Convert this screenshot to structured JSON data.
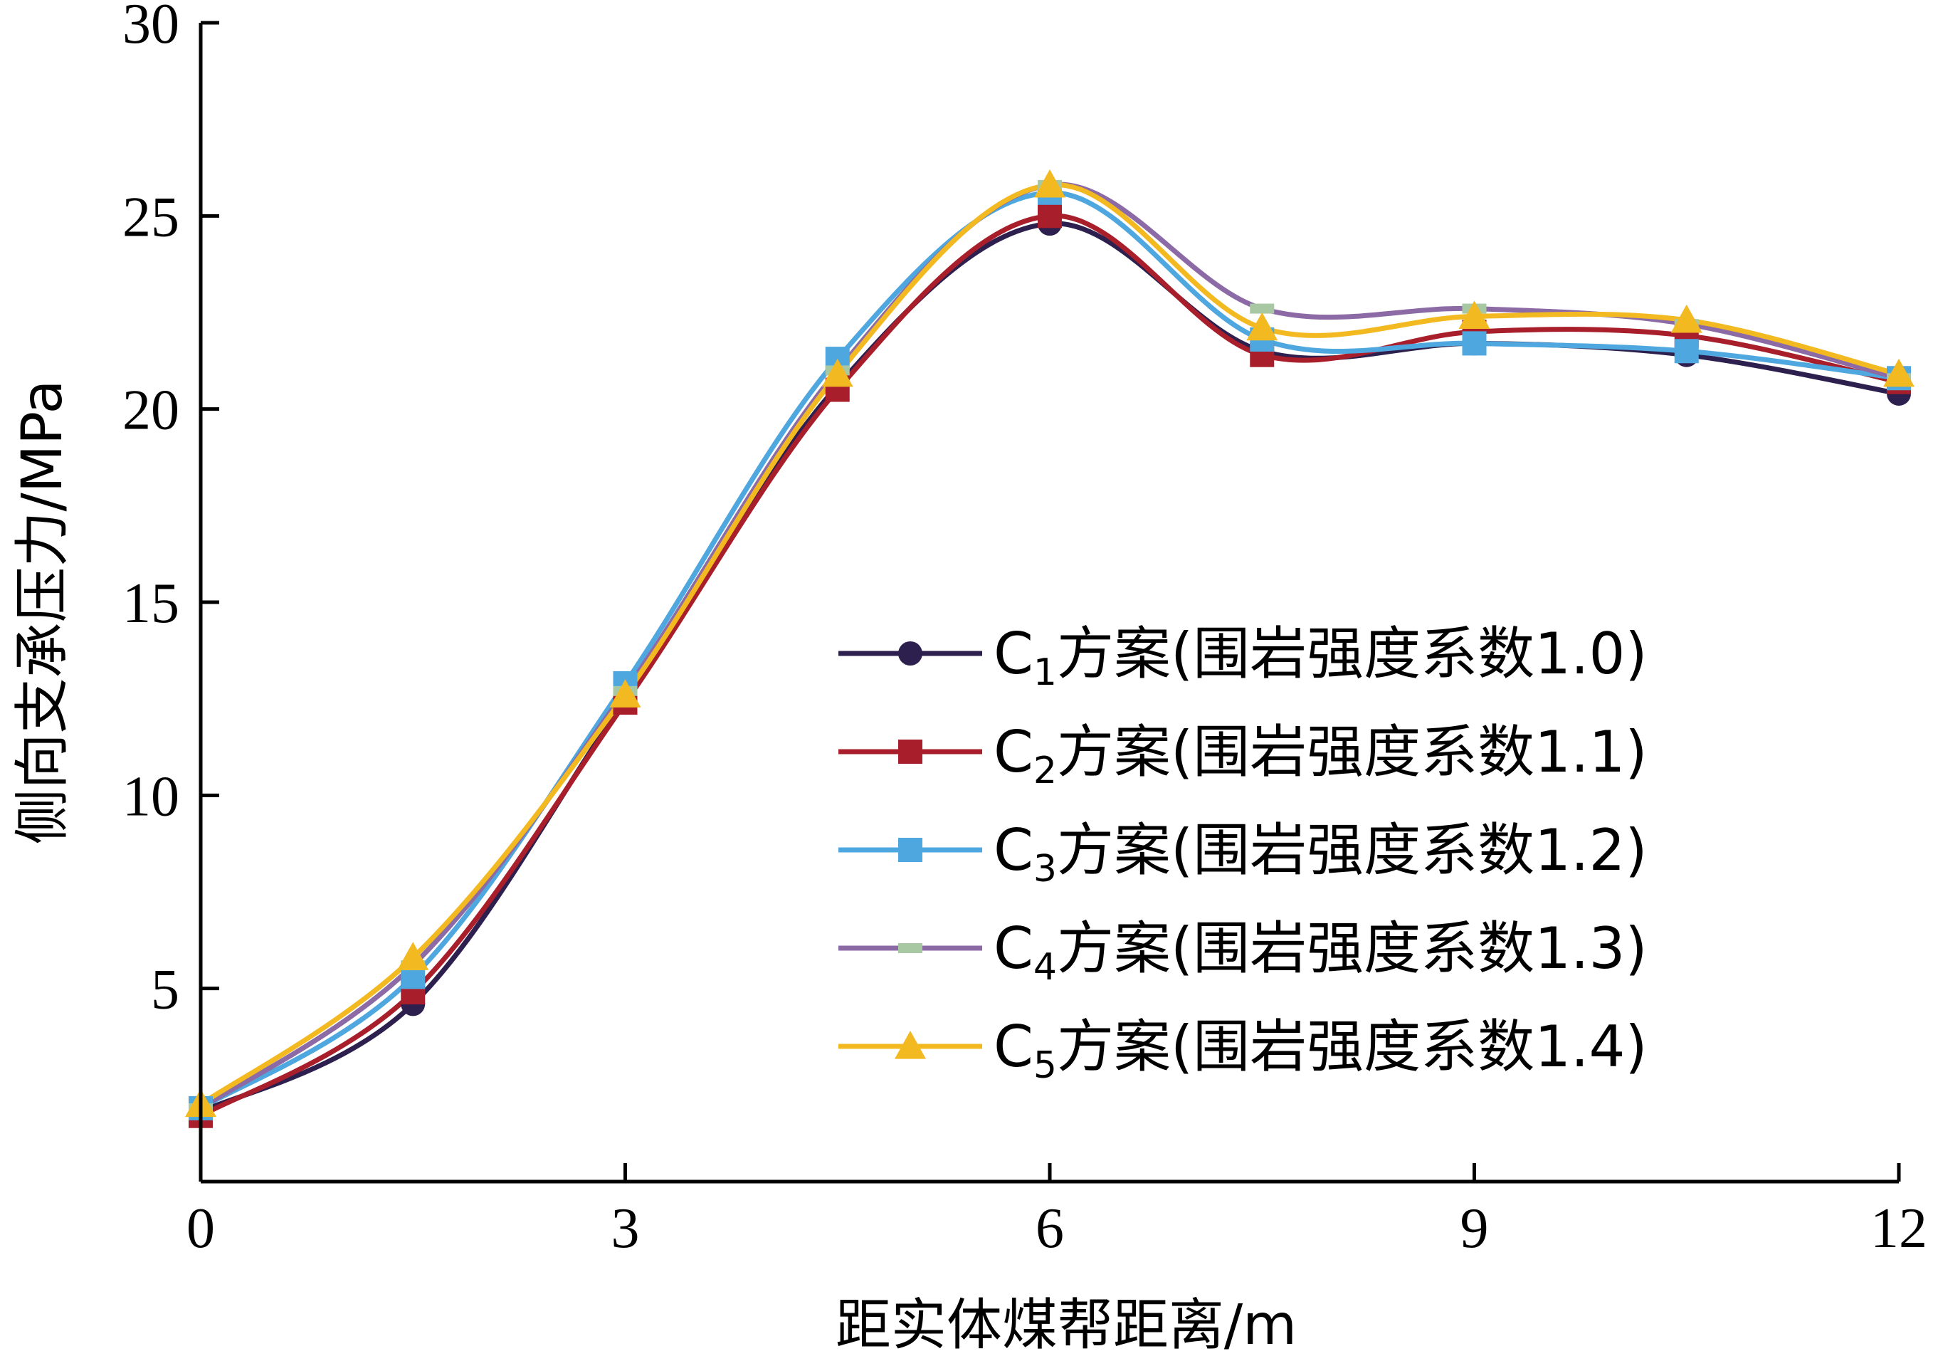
{
  "chart_data": {
    "type": "line",
    "title": "",
    "xlabel": "距实体煤帮距离/m",
    "ylabel": "侧向支承压力/MPa",
    "xlim": [
      0,
      12
    ],
    "ylim": [
      0,
      30
    ],
    "xticks": [
      0,
      3,
      6,
      9,
      12
    ],
    "yticks": [
      5,
      10,
      15,
      20,
      25,
      30
    ],
    "x": [
      0,
      1.5,
      3,
      4.5,
      6,
      7.5,
      9,
      10.5,
      12
    ],
    "grid": false,
    "legend_position": "right",
    "series": [
      {
        "name": "C1方案(围岩强度系数1.0)",
        "legend_parts": [
          "C",
          "1",
          "方案(围岩强度系数1.0)"
        ],
        "color": "#2d1f4e",
        "marker": "circle",
        "values": [
          1.8,
          4.6,
          12.5,
          20.6,
          24.8,
          21.5,
          21.7,
          21.4,
          20.4
        ]
      },
      {
        "name": "C2方案(围岩强度系数1.1)",
        "legend_parts": [
          "C",
          "2",
          "方案(围岩强度系数1.1)"
        ],
        "color": "#a81f2b",
        "marker": "square",
        "values": [
          1.7,
          4.9,
          12.4,
          20.5,
          25.0,
          21.4,
          22.0,
          21.9,
          20.7
        ]
      },
      {
        "name": "C3方案(围岩强度系数1.2)",
        "legend_parts": [
          "C",
          "3",
          "方案(围岩强度系数1.2)"
        ],
        "color": "#4ea7df",
        "marker": "square",
        "values": [
          1.9,
          5.3,
          12.9,
          21.3,
          25.6,
          21.8,
          21.7,
          21.5,
          20.8
        ]
      },
      {
        "name": "C4方案(围岩强度系数1.3)",
        "legend_parts": [
          "C",
          "4",
          "方案(围岩强度系数1.3)"
        ],
        "color": "#8b6aa6",
        "marker": "dash",
        "marker_color": "#a8c7a3",
        "values": [
          1.9,
          5.6,
          12.7,
          21.0,
          25.8,
          22.6,
          22.6,
          22.2,
          20.8
        ]
      },
      {
        "name": "C5方案(围岩强度系数1.4)",
        "legend_parts": [
          "C",
          "5",
          "方案(围岩强度系数1.4)"
        ],
        "color": "#f2b921",
        "marker": "triangle",
        "values": [
          2.0,
          5.8,
          12.6,
          20.9,
          25.8,
          22.1,
          22.4,
          22.3,
          20.9
        ]
      }
    ]
  }
}
